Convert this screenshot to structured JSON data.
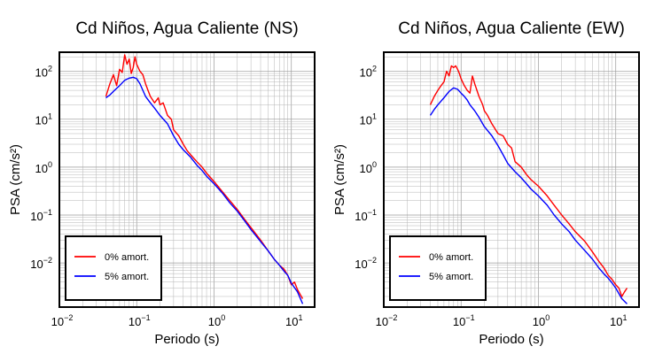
{
  "chart_data": [
    {
      "type": "line",
      "title": "Cd Niños, Agua Caliente (NS)",
      "xlabel": "Periodo (s)",
      "ylabel": "PSA (cm/s²)",
      "xscale": "log",
      "yscale": "log",
      "xlim": [
        0.01,
        20
      ],
      "ylim": [
        0.0012,
        250
      ],
      "grid": true,
      "legend_position": "bottom-left",
      "x_ticks": [
        {
          "base": "10",
          "exp": "−2"
        },
        {
          "base": "10",
          "exp": "−1"
        },
        {
          "base": "10",
          "exp": "0"
        },
        {
          "base": "10",
          "exp": "1"
        }
      ],
      "y_ticks": [
        {
          "base": "10",
          "exp": "−2"
        },
        {
          "base": "10",
          "exp": "−1"
        },
        {
          "base": "10",
          "exp": "0"
        },
        {
          "base": "10",
          "exp": "1"
        },
        {
          "base": "10",
          "exp": "2"
        }
      ],
      "series": [
        {
          "name": "0% amort.",
          "color": "#ff0000",
          "x": [
            0.04,
            0.045,
            0.05,
            0.055,
            0.06,
            0.065,
            0.07,
            0.075,
            0.08,
            0.085,
            0.09,
            0.095,
            0.1,
            0.11,
            0.12,
            0.13,
            0.14,
            0.15,
            0.17,
            0.19,
            0.2,
            0.22,
            0.25,
            0.28,
            0.3,
            0.35,
            0.4,
            0.45,
            0.5,
            0.6,
            0.7,
            0.8,
            1.0,
            1.3,
            1.6,
            2.0,
            2.5,
            3.0,
            4.0,
            5.0,
            6.0,
            7.0,
            8.0,
            9.0,
            10.0,
            11.0,
            12.0,
            13.0,
            14.0
          ],
          "y": [
            30,
            55,
            85,
            50,
            110,
            95,
            220,
            140,
            180,
            90,
            120,
            200,
            140,
            100,
            85,
            55,
            40,
            30,
            22,
            28,
            20,
            22,
            12,
            10,
            6,
            4.5,
            3,
            2.2,
            1.8,
            1.3,
            1.0,
            0.75,
            0.5,
            0.3,
            0.2,
            0.13,
            0.08,
            0.055,
            0.03,
            0.018,
            0.012,
            0.009,
            0.0075,
            0.0055,
            0.0035,
            0.004,
            0.0028,
            0.0022,
            0.0018
          ]
        },
        {
          "name": "5% amort.",
          "color": "#0000ff",
          "x": [
            0.04,
            0.045,
            0.05,
            0.06,
            0.07,
            0.08,
            0.09,
            0.1,
            0.11,
            0.12,
            0.13,
            0.15,
            0.17,
            0.2,
            0.25,
            0.3,
            0.35,
            0.4,
            0.5,
            0.6,
            0.7,
            0.8,
            1.0,
            1.3,
            1.6,
            2.0,
            2.5,
            3.0,
            4.0,
            5.0,
            6.0,
            7.0,
            8.0,
            9.0,
            10.0,
            12.0,
            14.0
          ],
          "y": [
            28,
            32,
            38,
            50,
            65,
            72,
            75,
            70,
            55,
            40,
            30,
            22,
            17,
            12,
            8,
            4.5,
            3,
            2.3,
            1.6,
            1.1,
            0.85,
            0.65,
            0.45,
            0.28,
            0.18,
            0.12,
            0.075,
            0.05,
            0.028,
            0.018,
            0.012,
            0.009,
            0.0068,
            0.0055,
            0.0038,
            0.0025,
            0.0014
          ]
        }
      ]
    },
    {
      "type": "line",
      "title": "Cd Niños, Agua Caliente (EW)",
      "xlabel": "Periodo (s)",
      "ylabel": "PSA (cm/s²)",
      "xscale": "log",
      "yscale": "log",
      "xlim": [
        0.01,
        20
      ],
      "ylim": [
        0.0012,
        250
      ],
      "grid": true,
      "legend_position": "bottom-left",
      "x_ticks": [
        {
          "base": "10",
          "exp": "−2"
        },
        {
          "base": "10",
          "exp": "−1"
        },
        {
          "base": "10",
          "exp": "0"
        },
        {
          "base": "10",
          "exp": "1"
        }
      ],
      "y_ticks": [
        {
          "base": "10",
          "exp": "−2"
        },
        {
          "base": "10",
          "exp": "−1"
        },
        {
          "base": "10",
          "exp": "0"
        },
        {
          "base": "10",
          "exp": "1"
        },
        {
          "base": "10",
          "exp": "2"
        }
      ],
      "series": [
        {
          "name": "0% amort.",
          "color": "#ff0000",
          "x": [
            0.04,
            0.045,
            0.05,
            0.055,
            0.06,
            0.065,
            0.07,
            0.075,
            0.08,
            0.085,
            0.09,
            0.095,
            0.1,
            0.11,
            0.12,
            0.13,
            0.14,
            0.15,
            0.17,
            0.19,
            0.2,
            0.22,
            0.25,
            0.3,
            0.35,
            0.4,
            0.45,
            0.5,
            0.6,
            0.7,
            0.8,
            1.0,
            1.3,
            1.6,
            2.0,
            2.5,
            3.0,
            4.0,
            5.0,
            6.0,
            7.0,
            8.0,
            9.0,
            10.0,
            11.0,
            12.0,
            13.0,
            14.0
          ],
          "y": [
            20,
            30,
            40,
            50,
            60,
            100,
            80,
            130,
            120,
            130,
            110,
            90,
            70,
            50,
            40,
            35,
            80,
            55,
            30,
            20,
            15,
            12,
            8,
            5,
            4.5,
            3,
            2.5,
            1.3,
            1.0,
            0.7,
            0.55,
            0.4,
            0.25,
            0.16,
            0.1,
            0.065,
            0.045,
            0.028,
            0.017,
            0.011,
            0.008,
            0.0055,
            0.0045,
            0.0035,
            0.003,
            0.002,
            0.0025,
            0.003
          ]
        },
        {
          "name": "5% amort.",
          "color": "#0000ff",
          "x": [
            0.04,
            0.045,
            0.05,
            0.06,
            0.07,
            0.08,
            0.09,
            0.1,
            0.11,
            0.12,
            0.13,
            0.15,
            0.17,
            0.2,
            0.25,
            0.3,
            0.35,
            0.4,
            0.5,
            0.6,
            0.7,
            0.8,
            1.0,
            1.3,
            1.6,
            2.0,
            2.5,
            3.0,
            4.0,
            5.0,
            6.0,
            7.0,
            8.0,
            9.0,
            10.0,
            12.0,
            14.0
          ],
          "y": [
            12,
            16,
            20,
            28,
            38,
            45,
            42,
            35,
            30,
            25,
            20,
            15,
            11,
            7,
            4.5,
            2.8,
            1.8,
            1.2,
            0.8,
            0.6,
            0.45,
            0.35,
            0.25,
            0.16,
            0.1,
            0.065,
            0.045,
            0.03,
            0.018,
            0.012,
            0.008,
            0.006,
            0.0048,
            0.0038,
            0.003,
            0.0018,
            0.0014
          ]
        }
      ]
    }
  ]
}
